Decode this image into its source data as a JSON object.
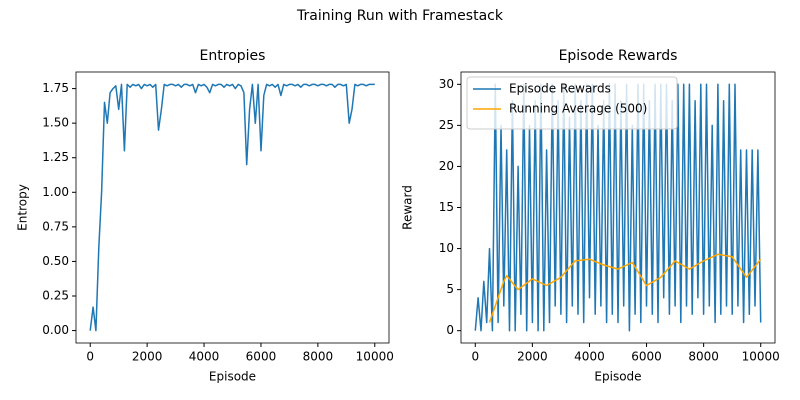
{
  "title": "Training Run with Framestack",
  "chart_data": [
    {
      "type": "line",
      "title": "Entropies",
      "xlabel": "Episode",
      "ylabel": "Entropy",
      "color": "#1f77b4",
      "x": [
        0,
        100,
        200,
        300,
        400,
        500,
        600,
        700,
        800,
        900,
        1000,
        1100,
        1200,
        1300,
        1400,
        1500,
        1600,
        1700,
        1800,
        1900,
        2000,
        2100,
        2200,
        2300,
        2400,
        2500,
        2600,
        2700,
        2800,
        2900,
        3000,
        3100,
        3200,
        3300,
        3400,
        3500,
        3600,
        3700,
        3800,
        3900,
        4000,
        4100,
        4200,
        4300,
        4400,
        4500,
        4600,
        4700,
        4800,
        4900,
        5000,
        5100,
        5200,
        5300,
        5400,
        5500,
        5600,
        5700,
        5800,
        5900,
        6000,
        6100,
        6200,
        6300,
        6400,
        6500,
        6600,
        6700,
        6800,
        6900,
        7000,
        7100,
        7200,
        7300,
        7400,
        7500,
        7600,
        7700,
        7800,
        7900,
        8000,
        8100,
        8200,
        8300,
        8400,
        8500,
        8600,
        8700,
        8800,
        8900,
        9000,
        9100,
        9200,
        9300,
        9400,
        9500,
        9600,
        9700,
        9800,
        9900,
        10000
      ],
      "values": [
        0,
        0.17,
        0,
        0.6,
        1.0,
        1.65,
        1.5,
        1.72,
        1.75,
        1.77,
        1.6,
        1.78,
        1.3,
        1.78,
        1.76,
        1.78,
        1.77,
        1.78,
        1.75,
        1.78,
        1.77,
        1.78,
        1.76,
        1.78,
        1.45,
        1.6,
        1.78,
        1.77,
        1.78,
        1.78,
        1.77,
        1.78,
        1.76,
        1.78,
        1.78,
        1.77,
        1.78,
        1.72,
        1.78,
        1.77,
        1.78,
        1.76,
        1.72,
        1.78,
        1.77,
        1.78,
        1.78,
        1.76,
        1.78,
        1.77,
        1.78,
        1.75,
        1.78,
        1.77,
        1.72,
        1.2,
        1.6,
        1.78,
        1.5,
        1.78,
        1.3,
        1.7,
        1.78,
        1.77,
        1.78,
        1.76,
        1.78,
        1.7,
        1.78,
        1.77,
        1.78,
        1.78,
        1.77,
        1.78,
        1.76,
        1.78,
        1.78,
        1.77,
        1.78,
        1.78,
        1.77,
        1.78,
        1.78,
        1.77,
        1.78,
        1.78,
        1.76,
        1.78,
        1.78,
        1.77,
        1.78,
        1.5,
        1.6,
        1.78,
        1.77,
        1.78,
        1.78,
        1.77,
        1.78,
        1.78,
        1.78
      ],
      "xlim": [
        -500,
        10500
      ],
      "xticks": [
        0,
        2000,
        4000,
        6000,
        8000,
        10000
      ],
      "ylim": [
        -0.09,
        1.87
      ],
      "yticks": [
        {
          "value": 0,
          "label": "0.00"
        },
        {
          "value": 0.25,
          "label": "0.25"
        },
        {
          "value": 0.5,
          "label": "0.50"
        },
        {
          "value": 0.75,
          "label": "0.75"
        },
        {
          "value": 1,
          "label": "1.00"
        },
        {
          "value": 1.25,
          "label": "1.25"
        },
        {
          "value": 1.5,
          "label": "1.50"
        },
        {
          "value": 1.75,
          "label": "1.75"
        }
      ]
    },
    {
      "type": "line",
      "title": "Episode Rewards",
      "xlabel": "Episode",
      "ylabel": "Reward",
      "legend": "upper left",
      "x": [
        0,
        100,
        200,
        300,
        400,
        500,
        600,
        700,
        800,
        900,
        1000,
        1100,
        1200,
        1300,
        1400,
        1500,
        1600,
        1700,
        1800,
        1900,
        2000,
        2100,
        2200,
        2300,
        2400,
        2500,
        2600,
        2700,
        2800,
        2900,
        3000,
        3100,
        3200,
        3300,
        3400,
        3500,
        3600,
        3700,
        3800,
        3900,
        4000,
        4100,
        4200,
        4300,
        4400,
        4500,
        4600,
        4700,
        4800,
        4900,
        5000,
        5100,
        5200,
        5300,
        5400,
        5500,
        5600,
        5700,
        5800,
        5900,
        6000,
        6100,
        6200,
        6300,
        6400,
        6500,
        6600,
        6700,
        6800,
        6900,
        7000,
        7100,
        7200,
        7300,
        7400,
        7500,
        7600,
        7700,
        7800,
        7900,
        8000,
        8100,
        8200,
        8300,
        8400,
        8500,
        8600,
        8700,
        8800,
        8900,
        9000,
        9100,
        9200,
        9300,
        9400,
        9500,
        9600,
        9700,
        9800,
        9900,
        10000
      ],
      "series": [
        {
          "name": "Episode Rewards",
          "color": "#1f77b4",
          "values": [
            0,
            4,
            0,
            6,
            1,
            10,
            0,
            30,
            1,
            25,
            3,
            22,
            0,
            28,
            0,
            20,
            2,
            30,
            0,
            25,
            1,
            28,
            0,
            30,
            0,
            22,
            1,
            30,
            3,
            28,
            2,
            30,
            1,
            26,
            3,
            30,
            2,
            28,
            1,
            30,
            4,
            30,
            2,
            25,
            3,
            28,
            1,
            30,
            2,
            30,
            1,
            28,
            3,
            30,
            0,
            25,
            2,
            30,
            1,
            30,
            3,
            28,
            2,
            30,
            1,
            30,
            4,
            30,
            2,
            28,
            3,
            30,
            1,
            30,
            3,
            30,
            2,
            28,
            4,
            30,
            2,
            30,
            3,
            25,
            1,
            30,
            2,
            28,
            3,
            30,
            2,
            30,
            3,
            22,
            1,
            22,
            2,
            22,
            3,
            22,
            1
          ]
        },
        {
          "name": "Running Average (500)",
          "color": "#ffa500",
          "x": [
            500,
            1000,
            1100,
            1500,
            2000,
            2500,
            3000,
            3500,
            4000,
            4500,
            5000,
            5500,
            6000,
            6500,
            7000,
            7500,
            8000,
            8500,
            9000,
            9500,
            10000
          ],
          "values": [
            1,
            6.0,
            6.7,
            5.0,
            6.3,
            5.5,
            6.5,
            8.5,
            8.7,
            8.0,
            7.5,
            8.3,
            5.5,
            6.5,
            8.5,
            7.5,
            8.5,
            9.3,
            9.0,
            6.5,
            8.7
          ]
        }
      ],
      "xlim": [
        -500,
        10500
      ],
      "xticks": [
        0,
        2000,
        4000,
        6000,
        8000,
        10000
      ],
      "ylim": [
        -1.5,
        31.5
      ],
      "yticks": [
        0,
        5,
        10,
        15,
        20,
        25,
        30
      ]
    }
  ]
}
